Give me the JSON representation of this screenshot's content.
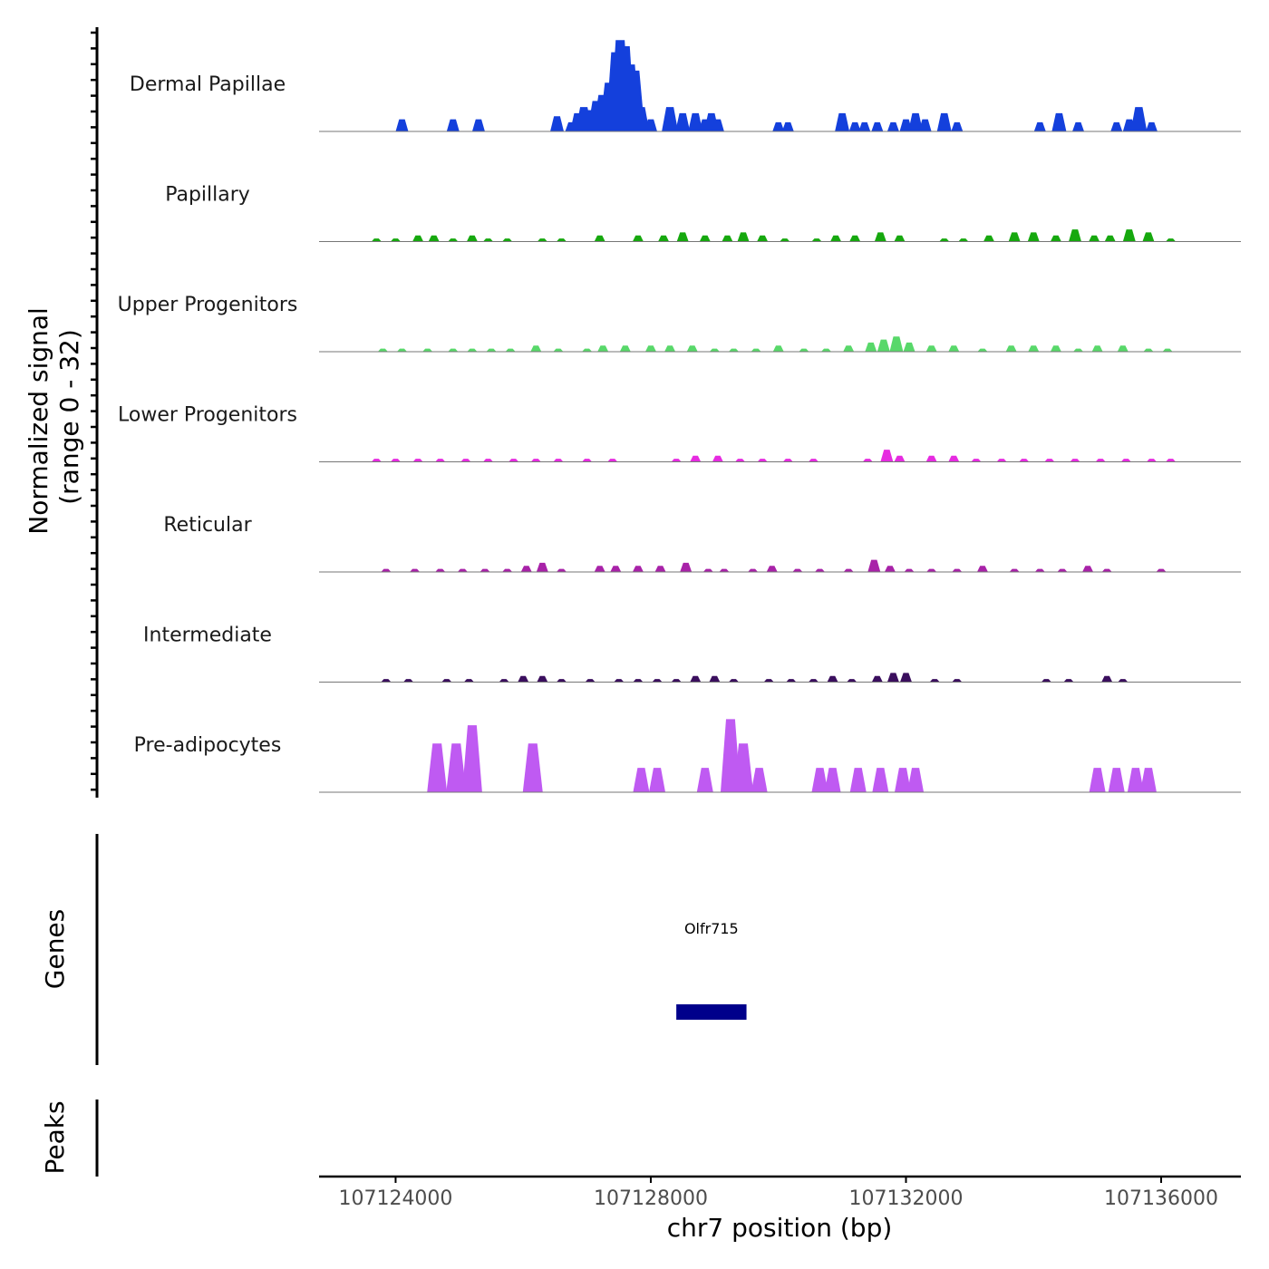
{
  "chart_data": {
    "type": "area",
    "title": "",
    "chromosome": "chr7",
    "xlabel": "chr7 position (bp)",
    "ylabel": "Normalized signal\n(range 0 - 32)",
    "ylabel_line1": "Normalized signal",
    "ylabel_line2": "(range 0 - 32)",
    "xlim": [
      107122800,
      107137250
    ],
    "ylim": [
      0,
      32
    ],
    "x_ticks": [
      107124000,
      107128000,
      107132000,
      107136000
    ],
    "x_tick_labels": [
      "107124000",
      "107128000",
      "107132000",
      "107136000"
    ],
    "series": [
      {
        "name": "Dermal Papillae",
        "color": "#1440dc",
        "peaks": [
          [
            107124100,
            4
          ],
          [
            107124900,
            4
          ],
          [
            107125300,
            4
          ],
          [
            107126530,
            5
          ],
          [
            107126750,
            3
          ],
          [
            107126850,
            6
          ],
          [
            107126950,
            8
          ],
          [
            107127050,
            7
          ],
          [
            107127150,
            10
          ],
          [
            107127250,
            12
          ],
          [
            107127350,
            16
          ],
          [
            107127450,
            26
          ],
          [
            107127520,
            30
          ],
          [
            107127600,
            28
          ],
          [
            107127680,
            22
          ],
          [
            107127750,
            20
          ],
          [
            107127850,
            8
          ],
          [
            107128000,
            4
          ],
          [
            107128300,
            8
          ],
          [
            107128500,
            6
          ],
          [
            107128700,
            6
          ],
          [
            107128850,
            4
          ],
          [
            107128950,
            6
          ],
          [
            107129050,
            4
          ],
          [
            107130000,
            3
          ],
          [
            107130150,
            3
          ],
          [
            107131000,
            6
          ],
          [
            107131200,
            3
          ],
          [
            107131350,
            3
          ],
          [
            107131550,
            3
          ],
          [
            107131800,
            3
          ],
          [
            107132000,
            4
          ],
          [
            107132150,
            6
          ],
          [
            107132300,
            4
          ],
          [
            107132600,
            6
          ],
          [
            107132800,
            3
          ],
          [
            107134100,
            3
          ],
          [
            107134400,
            6
          ],
          [
            107134700,
            3
          ],
          [
            107135300,
            3
          ],
          [
            107135500,
            4
          ],
          [
            107135650,
            8
          ],
          [
            107135850,
            3
          ]
        ]
      },
      {
        "name": "Papillary",
        "color": "#16a80e",
        "peaks": [
          [
            107123700,
            1
          ],
          [
            107124000,
            1
          ],
          [
            107124350,
            2
          ],
          [
            107124600,
            2
          ],
          [
            107124900,
            1
          ],
          [
            107125200,
            2
          ],
          [
            107125450,
            1
          ],
          [
            107125750,
            1
          ],
          [
            107126300,
            1
          ],
          [
            107126600,
            1
          ],
          [
            107127200,
            2
          ],
          [
            107127800,
            2
          ],
          [
            107128200,
            2
          ],
          [
            107128500,
            3
          ],
          [
            107128850,
            2
          ],
          [
            107129200,
            2
          ],
          [
            107129450,
            3
          ],
          [
            107129750,
            2
          ],
          [
            107130100,
            1
          ],
          [
            107130600,
            1
          ],
          [
            107130900,
            2
          ],
          [
            107131200,
            2
          ],
          [
            107131600,
            3
          ],
          [
            107131900,
            2
          ],
          [
            107132600,
            1
          ],
          [
            107132900,
            1
          ],
          [
            107133300,
            2
          ],
          [
            107133700,
            3
          ],
          [
            107134000,
            3
          ],
          [
            107134350,
            2
          ],
          [
            107134650,
            4
          ],
          [
            107134950,
            2
          ],
          [
            107135200,
            2
          ],
          [
            107135500,
            4
          ],
          [
            107135800,
            3
          ],
          [
            107136150,
            1
          ]
        ]
      },
      {
        "name": "Upper Progenitors",
        "color": "#58d86a",
        "peaks": [
          [
            107123800,
            1
          ],
          [
            107124100,
            1
          ],
          [
            107124500,
            1
          ],
          [
            107124900,
            1
          ],
          [
            107125200,
            1
          ],
          [
            107125500,
            1
          ],
          [
            107125800,
            1
          ],
          [
            107126200,
            2
          ],
          [
            107126550,
            1
          ],
          [
            107127000,
            1
          ],
          [
            107127250,
            2
          ],
          [
            107127600,
            2
          ],
          [
            107128000,
            2
          ],
          [
            107128300,
            2
          ],
          [
            107128650,
            2
          ],
          [
            107129000,
            1
          ],
          [
            107129300,
            1
          ],
          [
            107129650,
            1
          ],
          [
            107130000,
            2
          ],
          [
            107130400,
            1
          ],
          [
            107130750,
            1
          ],
          [
            107131100,
            2
          ],
          [
            107131450,
            3
          ],
          [
            107131650,
            4
          ],
          [
            107131850,
            5
          ],
          [
            107132050,
            3
          ],
          [
            107132400,
            2
          ],
          [
            107132750,
            2
          ],
          [
            107133200,
            1
          ],
          [
            107133650,
            2
          ],
          [
            107134000,
            2
          ],
          [
            107134350,
            2
          ],
          [
            107134700,
            1
          ],
          [
            107135000,
            2
          ],
          [
            107135400,
            2
          ],
          [
            107135800,
            1
          ],
          [
            107136100,
            1
          ]
        ]
      },
      {
        "name": "Lower Progenitors",
        "color": "#e62be0",
        "peaks": [
          [
            107123700,
            1
          ],
          [
            107124000,
            1
          ],
          [
            107124350,
            1
          ],
          [
            107124700,
            1
          ],
          [
            107125100,
            1
          ],
          [
            107125450,
            1
          ],
          [
            107125850,
            1
          ],
          [
            107126200,
            1
          ],
          [
            107126550,
            1
          ],
          [
            107127000,
            1
          ],
          [
            107127400,
            1
          ],
          [
            107128400,
            1
          ],
          [
            107128700,
            2
          ],
          [
            107129050,
            2
          ],
          [
            107129400,
            1
          ],
          [
            107129750,
            1
          ],
          [
            107130150,
            1
          ],
          [
            107130550,
            1
          ],
          [
            107131400,
            1
          ],
          [
            107131700,
            4
          ],
          [
            107131900,
            2
          ],
          [
            107132400,
            2
          ],
          [
            107132750,
            2
          ],
          [
            107133100,
            1
          ],
          [
            107133500,
            1
          ],
          [
            107133850,
            1
          ],
          [
            107134250,
            1
          ],
          [
            107134650,
            1
          ],
          [
            107135050,
            1
          ],
          [
            107135450,
            1
          ],
          [
            107135850,
            1
          ],
          [
            107136150,
            1
          ]
        ]
      },
      {
        "name": "Reticular",
        "color": "#a822a8",
        "peaks": [
          [
            107123850,
            1
          ],
          [
            107124300,
            1
          ],
          [
            107124700,
            1
          ],
          [
            107125050,
            1
          ],
          [
            107125400,
            1
          ],
          [
            107125750,
            1
          ],
          [
            107126050,
            2
          ],
          [
            107126300,
            3
          ],
          [
            107126600,
            1
          ],
          [
            107127200,
            2
          ],
          [
            107127450,
            2
          ],
          [
            107127800,
            2
          ],
          [
            107128150,
            2
          ],
          [
            107128550,
            3
          ],
          [
            107128900,
            1
          ],
          [
            107129150,
            1
          ],
          [
            107129600,
            1
          ],
          [
            107129900,
            2
          ],
          [
            107130300,
            1
          ],
          [
            107130650,
            1
          ],
          [
            107131100,
            1
          ],
          [
            107131500,
            4
          ],
          [
            107131750,
            2
          ],
          [
            107132050,
            1
          ],
          [
            107132400,
            1
          ],
          [
            107132800,
            1
          ],
          [
            107133200,
            2
          ],
          [
            107133700,
            1
          ],
          [
            107134100,
            1
          ],
          [
            107134450,
            1
          ],
          [
            107134850,
            2
          ],
          [
            107135150,
            1
          ],
          [
            107136000,
            1
          ]
        ]
      },
      {
        "name": "Intermediate",
        "color": "#3b0f5e",
        "peaks": [
          [
            107123850,
            1
          ],
          [
            107124200,
            1
          ],
          [
            107124800,
            1
          ],
          [
            107125150,
            1
          ],
          [
            107125700,
            1
          ],
          [
            107126000,
            2
          ],
          [
            107126300,
            2
          ],
          [
            107126600,
            1
          ],
          [
            107127050,
            1
          ],
          [
            107127500,
            1
          ],
          [
            107127800,
            1
          ],
          [
            107128100,
            1
          ],
          [
            107128400,
            1
          ],
          [
            107128700,
            2
          ],
          [
            107129000,
            2
          ],
          [
            107129300,
            1
          ],
          [
            107129850,
            1
          ],
          [
            107130200,
            1
          ],
          [
            107130550,
            1
          ],
          [
            107130850,
            2
          ],
          [
            107131150,
            1
          ],
          [
            107131550,
            2
          ],
          [
            107131800,
            3
          ],
          [
            107132000,
            3
          ],
          [
            107132450,
            1
          ],
          [
            107132800,
            1
          ],
          [
            107134200,
            1
          ],
          [
            107134550,
            1
          ],
          [
            107135150,
            2
          ],
          [
            107135400,
            1
          ]
        ]
      },
      {
        "name": "Pre-adipocytes",
        "color": "#bf5af2",
        "peaks": [
          [
            107124650,
            16
          ],
          [
            107124950,
            16
          ],
          [
            107125200,
            22
          ],
          [
            107126150,
            16
          ],
          [
            107127850,
            8
          ],
          [
            107128100,
            8
          ],
          [
            107128850,
            8
          ],
          [
            107129250,
            24
          ],
          [
            107129450,
            16
          ],
          [
            107129700,
            8
          ],
          [
            107130650,
            8
          ],
          [
            107130850,
            8
          ],
          [
            107131250,
            8
          ],
          [
            107131600,
            8
          ],
          [
            107131950,
            8
          ],
          [
            107132150,
            8
          ],
          [
            107135000,
            8
          ],
          [
            107135300,
            8
          ],
          [
            107135600,
            8
          ],
          [
            107135800,
            8
          ]
        ]
      }
    ],
    "genes": [
      {
        "name": "Olfr715",
        "start": 107128400,
        "end": 107129500,
        "color": "#00008b"
      }
    ],
    "panels": {
      "genes_label": "Genes",
      "peaks_label": "Peaks"
    }
  }
}
